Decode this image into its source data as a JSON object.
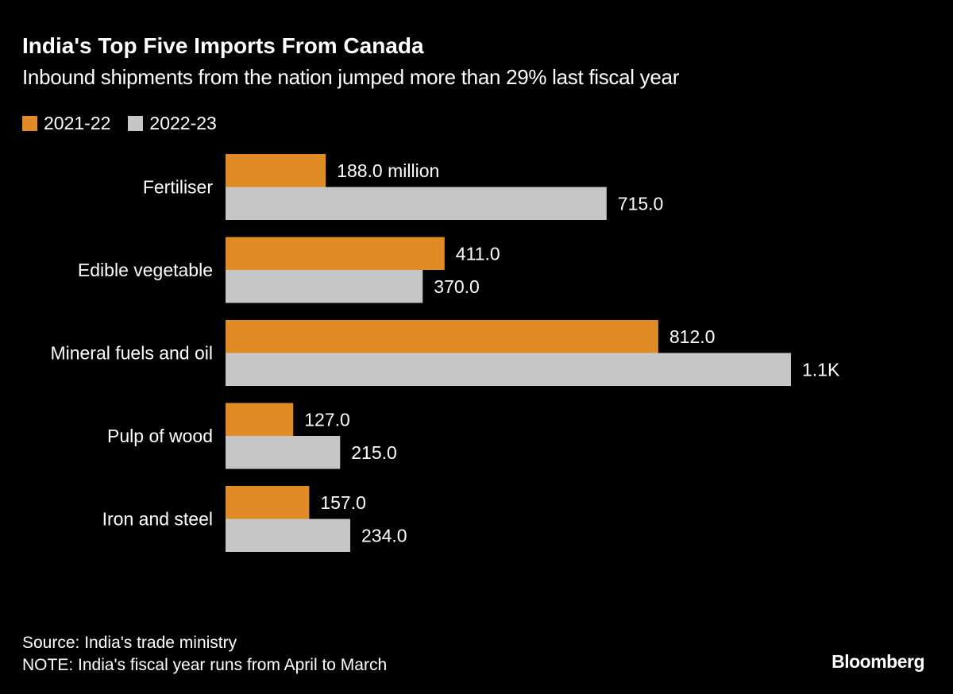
{
  "chart_data": {
    "type": "bar",
    "orientation": "horizontal",
    "title": "India's Top Five Imports From Canada",
    "subtitle": "Inbound shipments from the nation jumped more than 29% last fiscal year",
    "categories": [
      "Fertiliser",
      "Edible vegetable",
      "Mineral fuels and oil",
      "Pulp of wood",
      "Iron and steel"
    ],
    "series": [
      {
        "name": "2021-22",
        "color": "#e08b25",
        "values": [
          188.0,
          411.0,
          812.0,
          127.0,
          157.0
        ],
        "labels": [
          "188.0 million",
          "411.0",
          "812.0",
          "127.0",
          "157.0"
        ]
      },
      {
        "name": "2022-23",
        "color": "#c6c6c6",
        "values": [
          715.0,
          370.0,
          1061.0,
          215.0,
          234.0
        ],
        "labels": [
          "715.0",
          "370.0",
          "1.1K",
          "215.0",
          "234.0"
        ]
      }
    ],
    "unit": "million",
    "xlim": [
      0,
      1061
    ],
    "grid": false,
    "legend": "top-left",
    "source": "Source: India's trade ministry",
    "note": "NOTE: India's fiscal year runs from April to March"
  },
  "brand": "Bloomberg"
}
